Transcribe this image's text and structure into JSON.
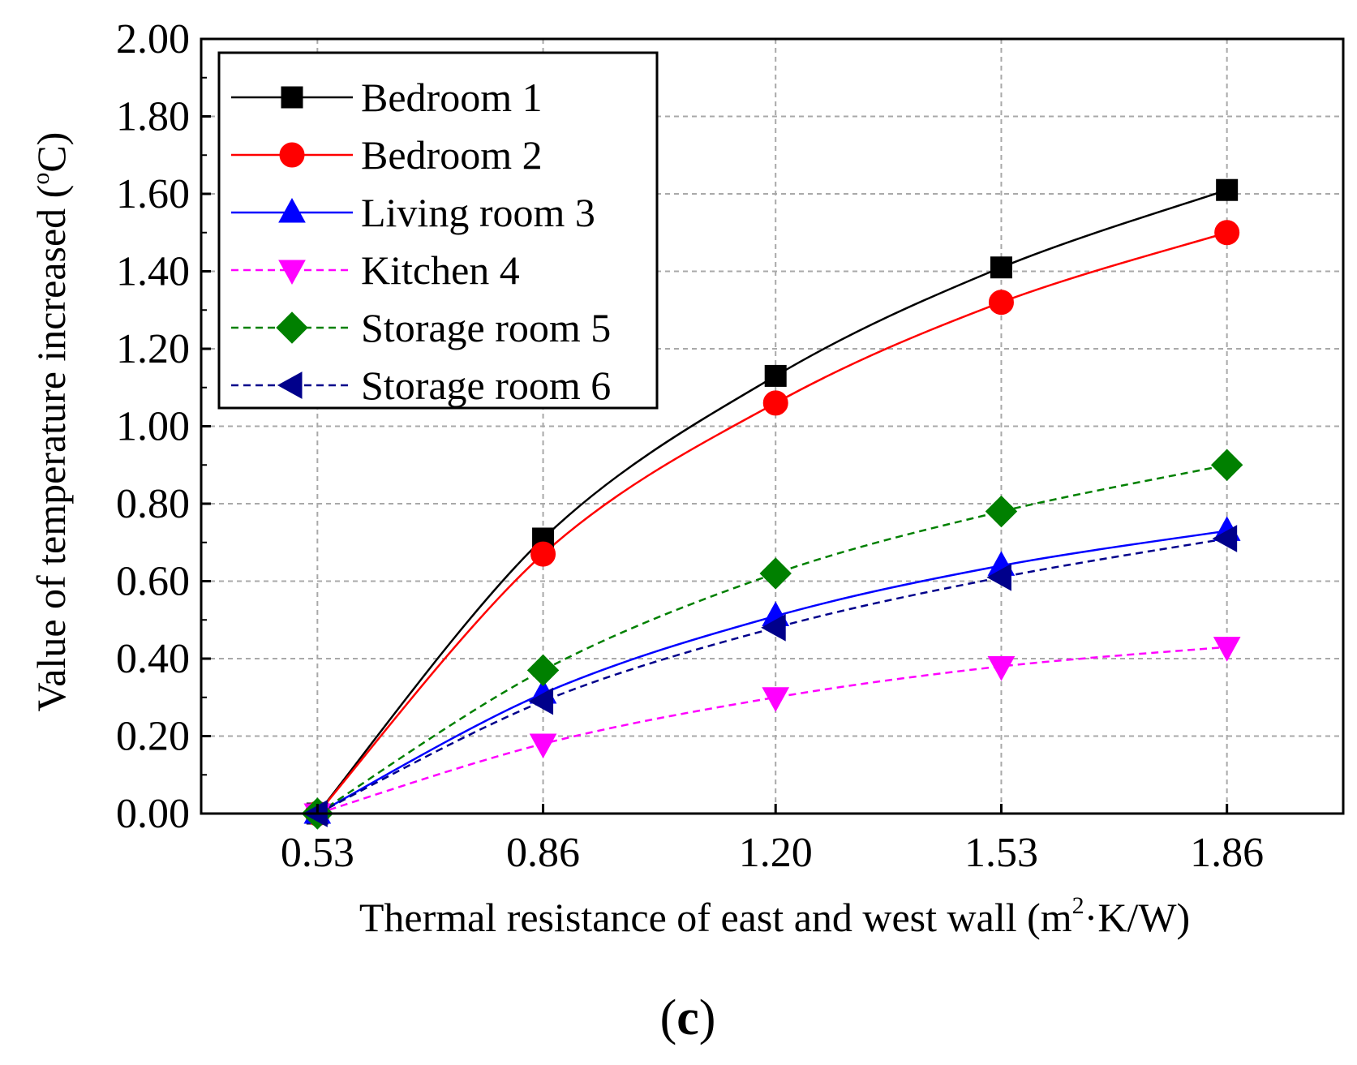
{
  "chart_data": {
    "type": "line",
    "panel_label": "c",
    "xlabel": "Thermal resistance of east and west wall (m",
    "xlabel_sup": "2",
    "xlabel_tail": "·K/W)",
    "ylabel": "Value of  temperature increased (",
    "ylabel_sup": "o",
    "ylabel_tail": "C)",
    "x": [
      0.53,
      0.86,
      1.2,
      1.53,
      1.86
    ],
    "x_tick_labels": [
      "0.53",
      "0.86",
      "1.20",
      "1.53",
      "1.86"
    ],
    "xlim": [
      0.36,
      2.03
    ],
    "ylim": [
      0,
      2
    ],
    "y_ticks": [
      0,
      0.2,
      0.4,
      0.6,
      0.8,
      1.0,
      1.2,
      1.4,
      1.6,
      1.8,
      2.0
    ],
    "y_tick_labels": [
      "0.00",
      "0.20",
      "0.40",
      "0.60",
      "0.80",
      "1.00",
      "1.20",
      "1.40",
      "1.60",
      "1.80",
      "2.00"
    ],
    "grid": true,
    "legend_position": "top-left",
    "series": [
      {
        "name": "Bedroom 1",
        "values": [
          0.0,
          0.71,
          1.13,
          1.41,
          1.61
        ],
        "color": "#000000",
        "marker": "square",
        "dash": "solid"
      },
      {
        "name": "Bedroom 2",
        "values": [
          0.0,
          0.67,
          1.06,
          1.32,
          1.5
        ],
        "color": "#ff0000",
        "marker": "circle",
        "dash": "solid"
      },
      {
        "name": "Living room 3",
        "values": [
          0.0,
          0.31,
          0.51,
          0.64,
          0.73
        ],
        "color": "#0000ff",
        "marker": "triangle-up",
        "dash": "solid"
      },
      {
        "name": "Kitchen 4",
        "values": [
          0.0,
          0.18,
          0.3,
          0.38,
          0.43
        ],
        "color": "#ff00ff",
        "marker": "triangle-down",
        "dash": "dashed"
      },
      {
        "name": "Storage room 5",
        "values": [
          0.0,
          0.37,
          0.62,
          0.78,
          0.9
        ],
        "color": "#008000",
        "marker": "diamond",
        "dash": "dashed"
      },
      {
        "name": "Storage room 6",
        "values": [
          0.0,
          0.29,
          0.48,
          0.61,
          0.71
        ],
        "color": "#00008b",
        "marker": "triangle-left",
        "dash": "dashed"
      }
    ]
  }
}
